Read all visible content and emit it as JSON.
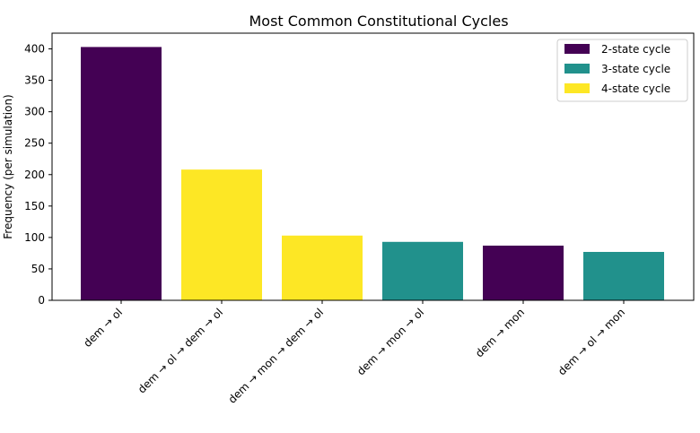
{
  "chart_data": {
    "type": "bar",
    "title": "Most Common Constitutional Cycles",
    "xlabel": "",
    "ylabel": "Frequency (per simulation)",
    "categories": [
      "dem → ol",
      "dem → ol → dem → ol",
      "dem → mon → dem → ol",
      "dem → mon → ol",
      "dem → mon",
      "dem → ol → mon"
    ],
    "values": [
      403,
      208,
      103,
      93,
      87,
      77
    ],
    "bar_groups": [
      "2-state cycle",
      "4-state cycle",
      "4-state cycle",
      "3-state cycle",
      "2-state cycle",
      "3-state cycle"
    ],
    "ylim": [
      0,
      425
    ],
    "yticks": [
      0,
      50,
      100,
      150,
      200,
      250,
      300,
      350,
      400
    ],
    "grid": false,
    "legend": {
      "placement": "top-right",
      "entries": [
        {
          "label": "2-state cycle",
          "color": "#440154"
        },
        {
          "label": "3-state cycle",
          "color": "#21918c"
        },
        {
          "label": "4-state cycle",
          "color": "#fde725"
        }
      ]
    }
  }
}
